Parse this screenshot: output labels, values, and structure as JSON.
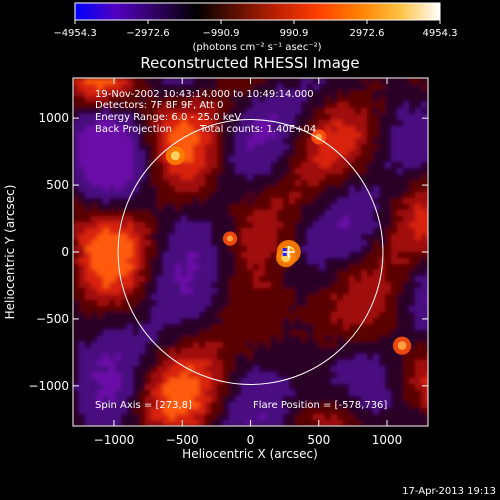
{
  "chart_data": {
    "type": "heatmap",
    "title": "Reconstructed RHESSI Image",
    "xlabel": "Heliocentric X (arcsec)",
    "ylabel": "Heliocentric Y (arcsec)",
    "xlim": [
      -1300,
      1300
    ],
    "ylim": [
      -1300,
      1300
    ],
    "x_ticks": [
      -1000,
      -500,
      0,
      500,
      1000
    ],
    "y_ticks": [
      -1000,
      -500,
      0,
      500,
      1000
    ],
    "x_tick_labels": [
      "−1000",
      "−500",
      "0",
      "500",
      "1000"
    ],
    "y_tick_labels": [
      "−1000",
      "−500",
      "0",
      "500",
      "1000"
    ],
    "colorbar": {
      "range": [
        -4954.3,
        4954.3
      ],
      "ticks": [
        -4954.3,
        -2972.6,
        -990.9,
        990.9,
        2972.6,
        4954.3
      ],
      "tick_labels": [
        "−4954.3",
        "−2972.6",
        "−990.9",
        "990.9",
        "2972.6",
        "4954.3"
      ],
      "unit_label": "(photons cm⁻² s⁻¹ asec⁻²)",
      "colormap": [
        "#0000ff",
        "#5000c0",
        "#300060",
        "#000000",
        "#601000",
        "#c02000",
        "#ff4000",
        "#ff8000",
        "#ffc040",
        "#ffffff"
      ]
    },
    "annotations": {
      "time": "19-Nov-2002 10:43:14.000 to 10:49:14.000",
      "detectors": "Detectors: 7F 8F 9F, Att 0",
      "energy": "Energy Range: 6.0 - 25.0 keV",
      "method": "Back Projection",
      "counts": "Total counts: 1.40E+04",
      "spin_axis": "Spin Axis = [273,8]",
      "flare_position": "Flare Position = [-578,736]"
    },
    "solar_limb": {
      "center": [
        0,
        0
      ],
      "radius_arcsec": 970
    },
    "bright_spots": [
      {
        "x": 280,
        "y": 0,
        "intensity": 4954.3
      },
      {
        "x": 260,
        "y": -40,
        "intensity": 3500
      },
      {
        "x": -550,
        "y": 720,
        "intensity": 3200
      },
      {
        "x": 1110,
        "y": -700,
        "intensity": 2900
      },
      {
        "x": 500,
        "y": 860,
        "intensity": 1800
      },
      {
        "x": -150,
        "y": 100,
        "intensity": 1500
      }
    ],
    "timestamp": "17-Apr-2013 19:13"
  }
}
